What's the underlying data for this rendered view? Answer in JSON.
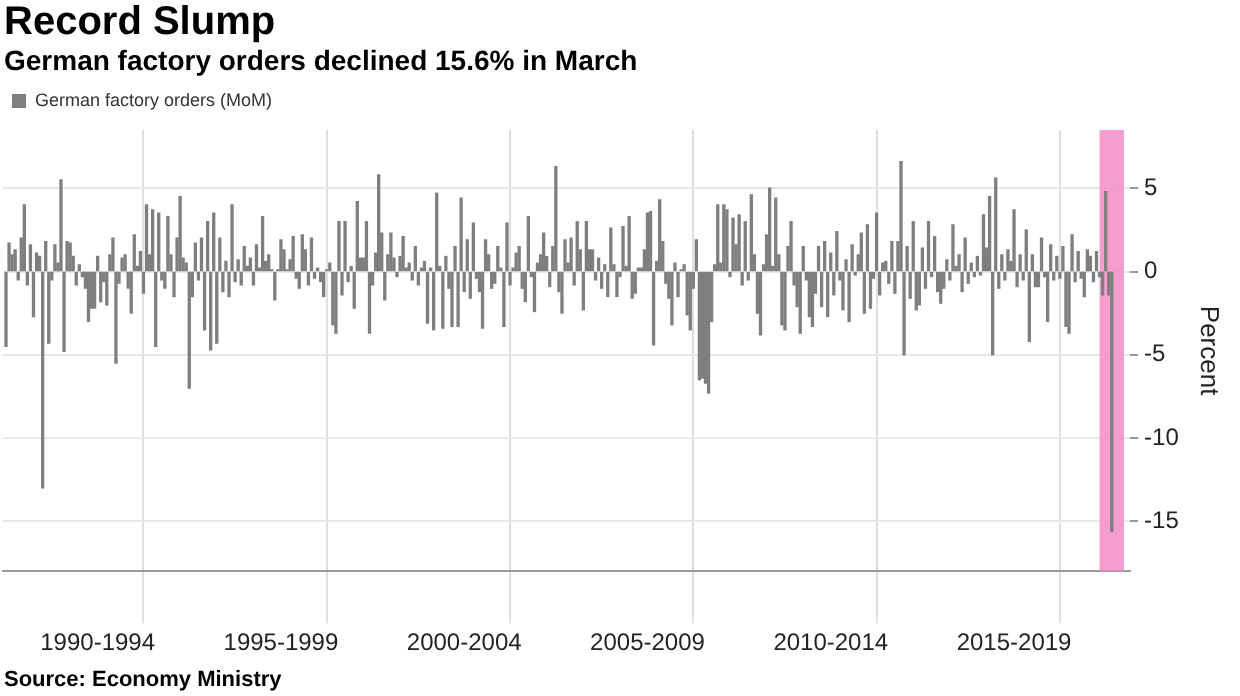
{
  "chart_data": {
    "type": "bar",
    "title": "Record Slump",
    "subtitle": "German factory orders declined 15.6% in March",
    "ylabel": "Percent",
    "annotations": [
      "Source: Economy Ministry"
    ],
    "x": [
      "1990-01",
      "1990-02",
      "1990-03",
      "1990-04",
      "1990-05",
      "1990-06",
      "1990-07",
      "1990-08",
      "1990-09",
      "1990-10",
      "1990-11",
      "1990-12",
      "1991-01",
      "1991-02",
      "1991-03",
      "1991-04",
      "1991-05",
      "1991-06",
      "1991-07",
      "1991-08",
      "1991-09",
      "1991-10",
      "1991-11",
      "1991-12",
      "1992-01",
      "1992-02",
      "1992-03",
      "1992-04",
      "1992-05",
      "1992-06",
      "1992-07",
      "1992-08",
      "1992-09",
      "1992-10",
      "1992-11",
      "1992-12",
      "1993-01",
      "1993-02",
      "1993-03",
      "1993-04",
      "1993-05",
      "1993-06",
      "1993-07",
      "1993-08",
      "1993-09",
      "1993-10",
      "1993-11",
      "1993-12",
      "1994-01",
      "1994-02",
      "1994-03",
      "1994-04",
      "1994-05",
      "1994-06",
      "1994-07",
      "1994-08",
      "1994-09",
      "1994-10",
      "1994-11",
      "1994-12",
      "1995-01",
      "1995-02",
      "1995-03",
      "1995-04",
      "1995-05",
      "1995-06",
      "1995-07",
      "1995-08",
      "1995-09",
      "1995-10",
      "1995-11",
      "1995-12",
      "1996-01",
      "1996-02",
      "1996-03",
      "1996-04",
      "1996-05",
      "1996-06",
      "1996-07",
      "1996-08",
      "1996-09",
      "1996-10",
      "1996-11",
      "1996-12",
      "1997-01",
      "1997-02",
      "1997-03",
      "1997-04",
      "1997-05",
      "1997-06",
      "1997-07",
      "1997-08",
      "1997-09",
      "1997-10",
      "1997-11",
      "1997-12",
      "1998-01",
      "1998-02",
      "1998-03",
      "1998-04",
      "1998-05",
      "1998-06",
      "1998-07",
      "1998-08",
      "1998-09",
      "1998-10",
      "1998-11",
      "1998-12",
      "1999-01",
      "1999-02",
      "1999-03",
      "1999-04",
      "1999-05",
      "1999-06",
      "1999-07",
      "1999-08",
      "1999-09",
      "1999-10",
      "1999-11",
      "1999-12",
      "2000-01",
      "2000-02",
      "2000-03",
      "2000-04",
      "2000-05",
      "2000-06",
      "2000-07",
      "2000-08",
      "2000-09",
      "2000-10",
      "2000-11",
      "2000-12",
      "2001-01",
      "2001-02",
      "2001-03",
      "2001-04",
      "2001-05",
      "2001-06",
      "2001-07",
      "2001-08",
      "2001-09",
      "2001-10",
      "2001-11",
      "2001-12",
      "2002-01",
      "2002-02",
      "2002-03",
      "2002-04",
      "2002-05",
      "2002-06",
      "2002-07",
      "2002-08",
      "2002-09",
      "2002-10",
      "2002-11",
      "2002-12",
      "2003-01",
      "2003-02",
      "2003-03",
      "2003-04",
      "2003-05",
      "2003-06",
      "2003-07",
      "2003-08",
      "2003-09",
      "2003-10",
      "2003-11",
      "2003-12",
      "2004-01",
      "2004-02",
      "2004-03",
      "2004-04",
      "2004-05",
      "2004-06",
      "2004-07",
      "2004-08",
      "2004-09",
      "2004-10",
      "2004-11",
      "2004-12",
      "2005-01",
      "2005-02",
      "2005-03",
      "2005-04",
      "2005-05",
      "2005-06",
      "2005-07",
      "2005-08",
      "2005-09",
      "2005-10",
      "2005-11",
      "2005-12",
      "2006-01",
      "2006-02",
      "2006-03",
      "2006-04",
      "2006-05",
      "2006-06",
      "2006-07",
      "2006-08",
      "2006-09",
      "2006-10",
      "2006-11",
      "2006-12",
      "2007-01",
      "2007-02",
      "2007-03",
      "2007-04",
      "2007-05",
      "2007-06",
      "2007-07",
      "2007-08",
      "2007-09",
      "2007-10",
      "2007-11",
      "2007-12",
      "2008-01",
      "2008-02",
      "2008-03",
      "2008-04",
      "2008-05",
      "2008-06",
      "2008-07",
      "2008-08",
      "2008-09",
      "2008-10",
      "2008-11",
      "2008-12",
      "2009-01",
      "2009-02",
      "2009-03",
      "2009-04",
      "2009-05",
      "2009-06",
      "2009-07",
      "2009-08",
      "2009-09",
      "2009-10",
      "2009-11",
      "2009-12",
      "2010-01",
      "2010-02",
      "2010-03",
      "2010-04",
      "2010-05",
      "2010-06",
      "2010-07",
      "2010-08",
      "2010-09",
      "2010-10",
      "2010-11",
      "2010-12",
      "2011-01",
      "2011-02",
      "2011-03",
      "2011-04",
      "2011-05",
      "2011-06",
      "2011-07",
      "2011-08",
      "2011-09",
      "2011-10",
      "2011-11",
      "2011-12",
      "2012-01",
      "2012-02",
      "2012-03",
      "2012-04",
      "2012-05",
      "2012-06",
      "2012-07",
      "2012-08",
      "2012-09",
      "2012-10",
      "2012-11",
      "2012-12",
      "2013-01",
      "2013-02",
      "2013-03",
      "2013-04",
      "2013-05",
      "2013-06",
      "2013-07",
      "2013-08",
      "2013-09",
      "2013-10",
      "2013-11",
      "2013-12",
      "2014-01",
      "2014-02",
      "2014-03",
      "2014-04",
      "2014-05",
      "2014-06",
      "2014-07",
      "2014-08",
      "2014-09",
      "2014-10",
      "2014-11",
      "2014-12",
      "2015-01",
      "2015-02",
      "2015-03",
      "2015-04",
      "2015-05",
      "2015-06",
      "2015-07",
      "2015-08",
      "2015-09",
      "2015-10",
      "2015-11",
      "2015-12",
      "2016-01",
      "2016-02",
      "2016-03",
      "2016-04",
      "2016-05",
      "2016-06",
      "2016-07",
      "2016-08",
      "2016-09",
      "2016-10",
      "2016-11",
      "2016-12",
      "2017-01",
      "2017-02",
      "2017-03",
      "2017-04",
      "2017-05",
      "2017-06",
      "2017-07",
      "2017-08",
      "2017-09",
      "2017-10",
      "2017-11",
      "2017-12",
      "2018-01",
      "2018-02",
      "2018-03",
      "2018-04",
      "2018-05",
      "2018-06",
      "2018-07",
      "2018-08",
      "2018-09",
      "2018-10",
      "2018-11",
      "2018-12",
      "2019-01",
      "2019-02",
      "2019-03",
      "2019-04",
      "2019-05",
      "2019-06",
      "2019-07",
      "2019-08",
      "2019-09",
      "2019-10",
      "2019-11",
      "2019-12",
      "2020-01",
      "2020-02",
      "2020-03"
    ],
    "series": [
      {
        "name": "German factory orders (MoM)",
        "color": "#7f7f7f",
        "values": [
          -4.5,
          1.7,
          1.0,
          1.3,
          -0.5,
          2.0,
          4.0,
          -0.8,
          1.6,
          -2.7,
          1.1,
          0.9,
          -13.0,
          1.8,
          -4.3,
          -0.5,
          1.6,
          0.5,
          5.5,
          -4.8,
          1.8,
          1.7,
          0.9,
          -0.8,
          0.4,
          -0.3,
          -1.0,
          -3.0,
          -2.2,
          -2.2,
          0.9,
          -1.8,
          -0.6,
          -2.0,
          1.0,
          2.0,
          -5.5,
          -0.7,
          0.8,
          1.0,
          -1.0,
          -2.5,
          2.2,
          0.3,
          1.2,
          -1.3,
          4.0,
          1.0,
          3.7,
          -4.5,
          3.5,
          -0.5,
          -1.0,
          3.3,
          1.0,
          -1.5,
          2.0,
          4.5,
          0.8,
          0.5,
          -7.0,
          -1.5,
          1.7,
          -0.5,
          2.0,
          -3.5,
          3.0,
          -4.7,
          3.5,
          -4.3,
          2.0,
          -1.2,
          0.6,
          -1.5,
          4.0,
          -0.6,
          0.7,
          -0.8,
          1.5,
          0.3,
          0.8,
          -0.8,
          1.6,
          0.2,
          3.3,
          0.6,
          1.0,
          0.1,
          -1.7,
          0.1,
          1.9,
          1.3,
          0.1,
          0.7,
          2.1,
          -0.4,
          -1.0,
          2.2,
          1.3,
          -0.8,
          2.0,
          -0.4,
          0.2,
          -0.6,
          -1.5,
          0.1,
          0.5,
          -3.2,
          -3.7,
          3.0,
          -1.4,
          3.0,
          -0.6,
          0.3,
          -2.2,
          4.2,
          0.8,
          0.8,
          3.0,
          -3.7,
          -0.8,
          1.1,
          5.8,
          2.3,
          -1.7,
          1.0,
          2.3,
          0.8,
          -0.3,
          0.9,
          2.1,
          0.2,
          0.5,
          -0.5,
          1.5,
          -0.8,
          0.2,
          0.6,
          -3.1,
          0.2,
          -3.5,
          4.7,
          0.3,
          -3.4,
          0.9,
          -1.0,
          -3.3,
          1.5,
          -3.3,
          4.4,
          -1.2,
          1.9,
          -1.6,
          2.9,
          -0.4,
          -1.2,
          -3.4,
          1.9,
          1.0,
          -1.0,
          -0.7,
          1.5,
          0.2,
          -3.3,
          2.9,
          -0.8,
          0.2,
          1.1,
          1.5,
          -1.0,
          -1.8,
          3.3,
          -0.3,
          -2.4,
          0.5,
          1.0,
          2.3,
          0.9,
          -0.9,
          1.5,
          6.3,
          -1.2,
          -2.5,
          1.9,
          0.5,
          2.0,
          -0.8,
          3.0,
          1.3,
          -2.3,
          3.0,
          1.3,
          1.3,
          -0.5,
          0.8,
          -1.0,
          0.4,
          -1.5,
          2.6,
          0.4,
          -1.5,
          -0.3,
          2.7,
          0.3,
          3.3,
          -1.6,
          -1.3,
          0.2,
          0.2,
          1.3,
          3.5,
          3.6,
          -4.4,
          0.6,
          4.3,
          1.8,
          -0.7,
          -1.6,
          -3.2,
          0.5,
          -1.5,
          0.1,
          0.4,
          -2.6,
          -3.5,
          -1.0,
          1.9,
          -6.5,
          -6.4,
          -6.7,
          -7.3,
          -3.0,
          0.4,
          4.0,
          0.5,
          4.0,
          3.7,
          -0.3,
          3.2,
          1.6,
          3.4,
          -0.8,
          3.0,
          -0.5,
          4.6,
          1.0,
          -2.5,
          -3.8,
          0.4,
          2.2,
          5.0,
          0.3,
          4.4,
          1.0,
          -3.2,
          -3.5,
          1.5,
          3.0,
          -0.8,
          -2.1,
          -3.7,
          1.5,
          -0.5,
          -2.7,
          -3.3,
          -1.3,
          1.5,
          -2.1,
          1.8,
          -2.7,
          1.1,
          -1.4,
          2.4,
          -0.5,
          -2.3,
          0.7,
          -3.0,
          1.6,
          -0.2,
          1.0,
          2.3,
          -2.5,
          2.8,
          -2.2,
          -0.4,
          3.5,
          -1.4,
          0.5,
          0.6,
          -0.7,
          1.8,
          -1.3,
          1.8,
          6.6,
          -5.0,
          1.5,
          -1.6,
          3.0,
          -2.3,
          -2.0,
          1.4,
          -1.0,
          3.0,
          -0.3,
          2.1,
          -1.2,
          -1.9,
          -1.0,
          0.7,
          -0.5,
          2.8,
          0.3,
          1.0,
          -1.2,
          2.0,
          -0.7,
          0.5,
          -0.3,
          0.9,
          -0.2,
          3.4,
          1.4,
          4.5,
          -5.0,
          5.6,
          -1.0,
          1.0,
          -0.5,
          1.3,
          0.6,
          3.7,
          -0.9,
          1.0,
          -0.5,
          2.5,
          -4.2,
          1.0,
          -0.9,
          -0.9,
          2.0,
          -0.3,
          -3.0,
          1.6,
          -0.5,
          0.9,
          -0.4,
          1.5,
          -3.3,
          -3.7,
          2.2,
          -0.6,
          1.2,
          -0.4,
          -1.5,
          1.3,
          0.9,
          -0.6,
          1.2,
          -0.3,
          -1.4,
          4.8,
          -1.4,
          -15.6
        ]
      }
    ],
    "xlim": [
      "1989-12",
      "2020-09"
    ],
    "xticks": [
      {
        "value": "1990-01",
        "label": null
      },
      {
        "value": "1992-07",
        "label": "1990-1994"
      },
      {
        "value": "1995-01",
        "label": null
      },
      {
        "value": "1997-07",
        "label": "1995-1999"
      },
      {
        "value": "2000-01",
        "label": null
      },
      {
        "value": "2002-07",
        "label": "2000-2004"
      },
      {
        "value": "2005-01",
        "label": null
      },
      {
        "value": "2007-07",
        "label": "2005-2009"
      },
      {
        "value": "2010-01",
        "label": null
      },
      {
        "value": "2012-07",
        "label": "2010-2014"
      },
      {
        "value": "2015-01",
        "label": null
      },
      {
        "value": "2017-07",
        "label": "2015-2019"
      },
      {
        "value": "2020-01",
        "label": null
      }
    ],
    "ylim": [
      -18,
      8.5
    ],
    "yticks": [
      -15,
      -10,
      -5,
      0,
      5
    ],
    "grid": true,
    "legend": "top left",
    "bands": [
      {
        "axis": "x",
        "from": "2019-11",
        "to": "2020-07",
        "color": "#f48cc8"
      }
    ]
  }
}
